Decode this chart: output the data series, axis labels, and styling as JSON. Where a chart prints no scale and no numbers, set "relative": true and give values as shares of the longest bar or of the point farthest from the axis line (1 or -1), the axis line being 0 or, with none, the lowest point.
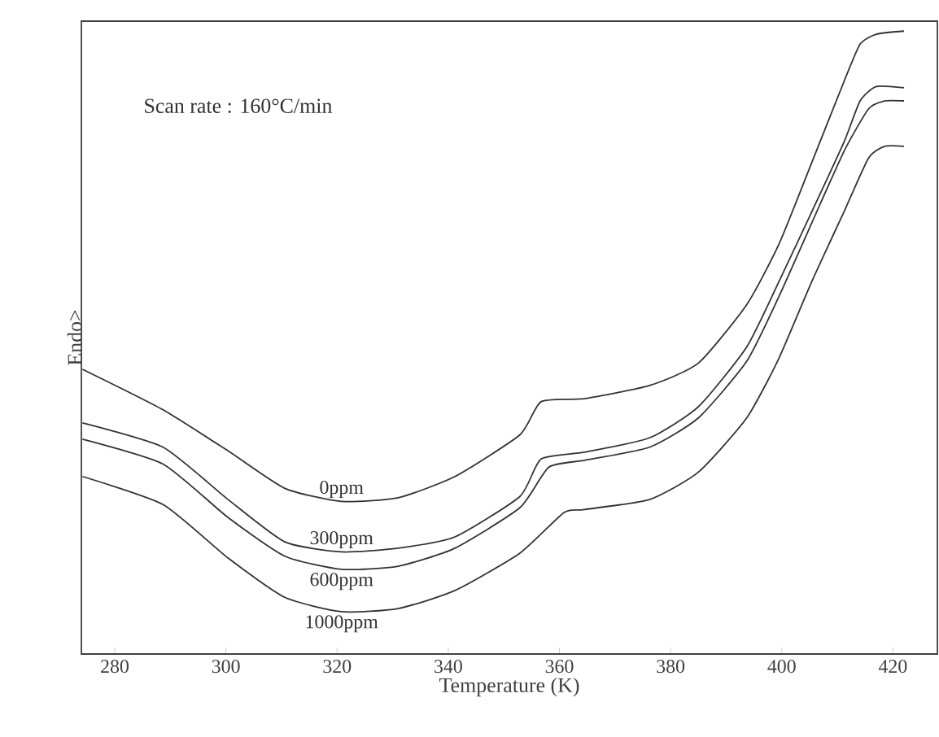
{
  "chart_data": {
    "type": "line",
    "relative": true,
    "xlabel": "Temperature (K)",
    "ylabel": "Endo>",
    "annotations": [
      "Scan rate : 160°C/min"
    ],
    "xlim": [
      274,
      428
    ],
    "xticks": [
      280,
      300,
      320,
      340,
      360,
      380,
      400,
      420
    ],
    "legend": false,
    "series": [
      {
        "name": "0ppm",
        "color": "#333333",
        "x": [
          274.2,
          288.7,
          300.4,
          310.6,
          320.8,
          331.0,
          341.2,
          352.9,
          356.7,
          364.5,
          376.2,
          385.0,
          393.7,
          399.5,
          405.4,
          411.2,
          414.1,
          417.0,
          422.0
        ],
        "values": [
          0.457,
          0.392,
          0.326,
          0.266,
          0.245,
          0.251,
          0.285,
          0.352,
          0.405,
          0.41,
          0.431,
          0.467,
          0.561,
          0.658,
          0.789,
          0.919,
          0.979,
          0.995,
          1.0
        ]
      },
      {
        "name": "300ppm",
        "color": "#333333",
        "x": [
          274.2,
          288.7,
          300.4,
          310.6,
          320.8,
          331.0,
          341.2,
          352.9,
          356.7,
          364.5,
          376.2,
          385.0,
          393.7,
          399.5,
          405.4,
          411.2,
          414.1,
          417.0,
          422.0
        ],
        "values": [
          0.371,
          0.332,
          0.248,
          0.18,
          0.164,
          0.17,
          0.188,
          0.253,
          0.313,
          0.324,
          0.347,
          0.397,
          0.493,
          0.598,
          0.71,
          0.822,
          0.888,
          0.911,
          0.909
        ]
      },
      {
        "name": "600ppm",
        "color": "#333333",
        "x": [
          274.2,
          288.7,
          300.4,
          310.6,
          320.8,
          331.0,
          341.2,
          352.9,
          358.1,
          364.5,
          376.2,
          385.0,
          393.7,
          399.5,
          405.4,
          411.2,
          415.6,
          418.5,
          422.0
        ],
        "values": [
          0.345,
          0.305,
          0.219,
          0.157,
          0.136,
          0.141,
          0.17,
          0.235,
          0.3,
          0.311,
          0.332,
          0.379,
          0.47,
          0.574,
          0.692,
          0.807,
          0.875,
          0.888,
          0.888
        ]
      },
      {
        "name": "1000ppm",
        "color": "#333333",
        "x": [
          274.2,
          288.7,
          300.4,
          310.6,
          320.8,
          331.0,
          341.2,
          352.9,
          360.8,
          364.5,
          376.2,
          385.0,
          393.7,
          399.5,
          405.4,
          411.2,
          415.6,
          418.5,
          422.0
        ],
        "values": [
          0.285,
          0.24,
          0.154,
          0.091,
          0.068,
          0.073,
          0.102,
          0.162,
          0.227,
          0.232,
          0.248,
          0.292,
          0.379,
          0.475,
          0.598,
          0.71,
          0.796,
          0.815,
          0.815
        ]
      }
    ]
  }
}
